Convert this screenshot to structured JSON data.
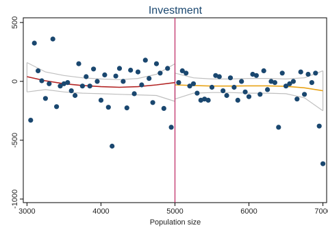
{
  "chart_data": {
    "type": "scatter",
    "title": "Investment",
    "xlabel": "Population size",
    "ylabel": "",
    "xlim": [
      2950,
      7050
    ],
    "ylim": [
      -1030,
      540
    ],
    "x_ticks": [
      3000,
      4000,
      5000,
      6000,
      7000
    ],
    "y_ticks": [
      500,
      0,
      -500,
      -1000
    ],
    "y_tick_labels": [
      "500",
      "0",
      "-500",
      "-1000"
    ],
    "cutoff": 5000,
    "colors": {
      "points": "#1a476f",
      "left_fit": "#b22222",
      "right_fit": "#e8a317",
      "ci_band": "#bfbfbf",
      "cutoff_line": "#c0306a",
      "title": "#1a476f"
    },
    "points": [
      [
        3050,
        -330
      ],
      [
        3100,
        325
      ],
      [
        3150,
        90
      ],
      [
        3200,
        5
      ],
      [
        3250,
        -145
      ],
      [
        3300,
        -20
      ],
      [
        3350,
        360
      ],
      [
        3400,
        -215
      ],
      [
        3450,
        -40
      ],
      [
        3500,
        -20
      ],
      [
        3550,
        -10
      ],
      [
        3600,
        -80
      ],
      [
        3650,
        -120
      ],
      [
        3700,
        150
      ],
      [
        3750,
        -40
      ],
      [
        3800,
        40
      ],
      [
        3850,
        -40
      ],
      [
        3900,
        105
      ],
      [
        3950,
        0
      ],
      [
        4000,
        -160
      ],
      [
        4050,
        55
      ],
      [
        4100,
        -220
      ],
      [
        4150,
        -550
      ],
      [
        4200,
        45
      ],
      [
        4250,
        110
      ],
      [
        4300,
        0
      ],
      [
        4350,
        -225
      ],
      [
        4400,
        95
      ],
      [
        4450,
        -105
      ],
      [
        4500,
        80
      ],
      [
        4550,
        -30
      ],
      [
        4600,
        180
      ],
      [
        4650,
        25
      ],
      [
        4700,
        -180
      ],
      [
        4750,
        150
      ],
      [
        4800,
        70
      ],
      [
        4850,
        -230
      ],
      [
        4900,
        110
      ],
      [
        4950,
        -390
      ],
      [
        5050,
        -10
      ],
      [
        5100,
        90
      ],
      [
        5150,
        70
      ],
      [
        5200,
        -40
      ],
      [
        5250,
        -20
      ],
      [
        5300,
        -100
      ],
      [
        5350,
        -160
      ],
      [
        5400,
        -150
      ],
      [
        5450,
        -160
      ],
      [
        5500,
        -50
      ],
      [
        5550,
        50
      ],
      [
        5600,
        40
      ],
      [
        5650,
        -80
      ],
      [
        5700,
        -120
      ],
      [
        5750,
        30
      ],
      [
        5800,
        -50
      ],
      [
        5850,
        -160
      ],
      [
        5900,
        0
      ],
      [
        5950,
        -90
      ],
      [
        6000,
        -130
      ],
      [
        6050,
        60
      ],
      [
        6100,
        50
      ],
      [
        6150,
        -110
      ],
      [
        6200,
        90
      ],
      [
        6250,
        -70
      ],
      [
        6300,
        0
      ],
      [
        6350,
        -10
      ],
      [
        6400,
        -390
      ],
      [
        6450,
        70
      ],
      [
        6500,
        -40
      ],
      [
        6550,
        -20
      ],
      [
        6600,
        0
      ],
      [
        6650,
        -150
      ],
      [
        6700,
        80
      ],
      [
        6750,
        -110
      ],
      [
        6800,
        60
      ],
      [
        6850,
        -10
      ],
      [
        6900,
        70
      ],
      [
        6950,
        -380
      ],
      [
        7000,
        -700
      ]
    ],
    "fit_left": [
      [
        3000,
        40
      ],
      [
        3250,
        5
      ],
      [
        3500,
        -20
      ],
      [
        3750,
        -35
      ],
      [
        4000,
        -45
      ],
      [
        4250,
        -50
      ],
      [
        4500,
        -45
      ],
      [
        4750,
        -30
      ],
      [
        5000,
        -10
      ]
    ],
    "fit_right": [
      [
        5000,
        -30
      ],
      [
        5250,
        -35
      ],
      [
        5500,
        -40
      ],
      [
        5750,
        -40
      ],
      [
        6000,
        -38
      ],
      [
        6250,
        -38
      ],
      [
        6500,
        -42
      ],
      [
        6750,
        -55
      ],
      [
        7000,
        -80
      ]
    ],
    "ci_left_upper": [
      [
        3000,
        160
      ],
      [
        3250,
        80
      ],
      [
        3500,
        50
      ],
      [
        3750,
        30
      ],
      [
        4000,
        20
      ],
      [
        4250,
        15
      ],
      [
        4500,
        25
      ],
      [
        4750,
        60
      ],
      [
        5000,
        150
      ]
    ],
    "ci_left_lower": [
      [
        3000,
        -90
      ],
      [
        3250,
        -70
      ],
      [
        3500,
        -90
      ],
      [
        3750,
        -100
      ],
      [
        4000,
        -105
      ],
      [
        4250,
        -110
      ],
      [
        4500,
        -115
      ],
      [
        4750,
        -120
      ],
      [
        5000,
        -170
      ]
    ],
    "ci_right_upper": [
      [
        5000,
        70
      ],
      [
        5250,
        30
      ],
      [
        5500,
        20
      ],
      [
        5750,
        20
      ],
      [
        6000,
        25
      ],
      [
        6250,
        25
      ],
      [
        6500,
        20
      ],
      [
        6750,
        30
      ],
      [
        7000,
        90
      ]
    ],
    "ci_right_lower": [
      [
        5000,
        -150
      ],
      [
        5250,
        -100
      ],
      [
        5500,
        -95
      ],
      [
        5750,
        -95
      ],
      [
        6000,
        -100
      ],
      [
        6250,
        -100
      ],
      [
        6500,
        -105
      ],
      [
        6750,
        -140
      ],
      [
        7000,
        -250
      ]
    ]
  }
}
